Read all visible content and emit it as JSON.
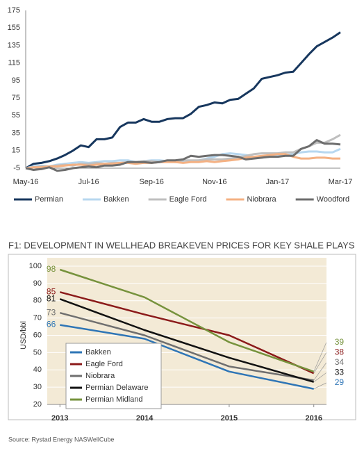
{
  "chart_data": [
    {
      "type": "line",
      "categories": [
        "May-16",
        null,
        null,
        null,
        null,
        null,
        null,
        null,
        "Jul-16",
        null,
        null,
        null,
        null,
        null,
        null,
        null,
        "Sep-16",
        null,
        null,
        null,
        null,
        null,
        null,
        null,
        "Nov-16",
        null,
        null,
        null,
        null,
        null,
        null,
        null,
        "Jan-17",
        null,
        null,
        null,
        null,
        null,
        null,
        null,
        "Mar-17"
      ],
      "series": [
        {
          "name": "Permian",
          "color": "#17375e",
          "values": [
            -5,
            0,
            1,
            3,
            6,
            10,
            15,
            21,
            19,
            28,
            28,
            30,
            42,
            47,
            47,
            51,
            48,
            48,
            51,
            52,
            52,
            57,
            65,
            67,
            70,
            69,
            73,
            74,
            80,
            86,
            97,
            99,
            101,
            104,
            105,
            115,
            125,
            134,
            139,
            144,
            150
          ]
        },
        {
          "name": "Bakken",
          "color": "#b7d7ef",
          "values": [
            -5,
            -3,
            -2,
            -3,
            -1,
            0,
            1,
            2,
            1,
            2,
            3,
            3,
            4,
            4,
            2,
            3,
            4,
            4,
            3,
            2,
            2,
            3,
            4,
            6,
            8,
            11,
            12,
            11,
            10,
            8,
            7,
            8,
            9,
            10,
            11,
            13,
            14,
            14,
            13,
            13,
            17
          ]
        },
        {
          "name": "Eagle Ford",
          "color": "#bfbfbf",
          "values": [
            -5,
            -4,
            -3,
            -3,
            -2,
            -1,
            -2,
            0,
            0,
            1,
            0,
            1,
            1,
            2,
            2,
            3,
            3,
            2,
            3,
            3,
            4,
            4,
            4,
            5,
            5,
            5,
            6,
            7,
            9,
            11,
            12,
            12,
            12,
            13,
            13,
            17,
            20,
            24,
            24,
            28,
            33
          ]
        },
        {
          "name": "Niobrara",
          "color": "#f4b183",
          "values": [
            -5,
            -4,
            -4,
            -3,
            -3,
            -2,
            -1,
            -1,
            -2,
            -1,
            0,
            0,
            1,
            1,
            0,
            1,
            1,
            2,
            2,
            2,
            1,
            2,
            2,
            3,
            2,
            3,
            4,
            5,
            7,
            8,
            9,
            10,
            11,
            11,
            8,
            6,
            6,
            7,
            7,
            6,
            6
          ]
        },
        {
          "name": "Woodford",
          "color": "#6d6d6d",
          "values": [
            -5,
            -7,
            -6,
            -4,
            -8,
            -7,
            -5,
            -4,
            -3,
            -4,
            -2,
            -2,
            -1,
            2,
            2,
            2,
            1,
            2,
            4,
            4,
            5,
            9,
            8,
            9,
            10,
            10,
            9,
            8,
            5,
            6,
            7,
            8,
            8,
            9,
            9,
            17,
            20,
            27,
            23,
            23,
            22
          ]
        }
      ],
      "ylim": [
        -5,
        175
      ],
      "yticks": [
        -5,
        15,
        35,
        55,
        75,
        95,
        115,
        135,
        155,
        175
      ],
      "grid": false,
      "legend": "bottom"
    },
    {
      "type": "line",
      "title": "F1: DEVELOPMENT IN WELLHEAD BREAKEVEN PRICES FOR KEY SHALE PLAYS",
      "y_label": "USD/bbl",
      "source": "Source: Rystad Energy NASWellCube",
      "x": [
        2013,
        2014,
        2015,
        2016
      ],
      "series": [
        {
          "name": "Bakken",
          "color": "#2e75b6",
          "values": [
            66,
            58,
            39,
            29
          ]
        },
        {
          "name": "Eagle Ford",
          "color": "#8b1a1a",
          "values": [
            85,
            72,
            60,
            38
          ]
        },
        {
          "name": "Niobrara",
          "color": "#6f6f6f",
          "values": [
            73,
            60,
            42,
            34
          ]
        },
        {
          "name": "Permian Delaware",
          "color": "#111111",
          "values": [
            81,
            63,
            47,
            33
          ]
        },
        {
          "name": "Permian Midland",
          "color": "#76923c",
          "values": [
            98,
            82,
            56,
            39
          ]
        }
      ],
      "xlim": [
        2012.85,
        2016.15
      ],
      "xticks": [
        2013,
        2014,
        2015,
        2016
      ],
      "ylim": [
        20,
        100
      ],
      "yticks": [
        20,
        30,
        40,
        50,
        60,
        70,
        80,
        90,
        100
      ],
      "grid": true,
      "legend": "lower left"
    }
  ]
}
